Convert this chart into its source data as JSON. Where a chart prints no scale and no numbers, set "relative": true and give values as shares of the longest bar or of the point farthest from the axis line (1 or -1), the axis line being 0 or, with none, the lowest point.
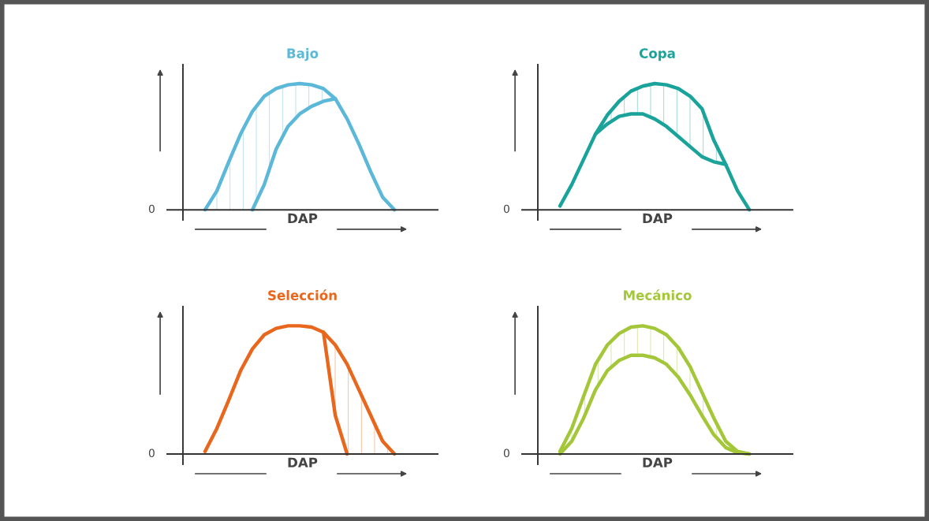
{
  "chart_data": [
    {
      "type": "line",
      "title": "Bajo",
      "xlabel": "DAP",
      "relative": true,
      "annotations": [
        "0"
      ],
      "categories": [
        null,
        null,
        null,
        null,
        null,
        null,
        null,
        null,
        null,
        null,
        null,
        null,
        null,
        null,
        null,
        null,
        null,
        null,
        null,
        null,
        null
      ],
      "series": [
        {
          "color": "#5bb8d8",
          "values": [
            null,
            0.0,
            0.15,
            0.38,
            0.6,
            0.78,
            0.9,
            0.96,
            0.99,
            1.0,
            0.99,
            0.96,
            0.88,
            0.72,
            0.52,
            0.3,
            0.1,
            0.0,
            null,
            null,
            null
          ],
          "lower": [
            null,
            0.0,
            0.0,
            0.0,
            0.0,
            0.0,
            0.2,
            0.48,
            0.66,
            0.76,
            0.82,
            0.86,
            0.88,
            null,
            null,
            null,
            null,
            null,
            null,
            null,
            null
          ],
          "upper": [
            null,
            0.0,
            0.15,
            0.38,
            0.6,
            0.78,
            0.9,
            0.96,
            0.99,
            1.0,
            0.99,
            0.96,
            0.88,
            null,
            null,
            null,
            null,
            null,
            null,
            null,
            null
          ]
        },
        {
          "color": "#5bb8d8",
          "values": [
            null,
            null,
            null,
            null,
            null,
            0.0,
            0.2,
            0.48,
            0.66,
            0.76,
            0.82,
            0.86,
            0.88,
            null,
            null,
            null,
            null,
            null,
            null,
            null,
            null
          ]
        }
      ]
    },
    {
      "type": "line",
      "title": "Copa",
      "xlabel": "DAP",
      "relative": true,
      "annotations": [
        "0"
      ],
      "categories": [
        null,
        null,
        null,
        null,
        null,
        null,
        null,
        null,
        null,
        null,
        null,
        null,
        null,
        null,
        null,
        null,
        null,
        null,
        null,
        null,
        null
      ],
      "series": [
        {
          "color": "#1aa39a",
          "values": [
            null,
            0.03,
            0.2,
            0.4,
            0.6,
            0.75,
            0.86,
            0.94,
            0.98,
            1.0,
            0.99,
            0.96,
            0.9,
            0.8,
            0.55,
            0.36,
            0.15,
            0.0,
            null,
            null,
            null
          ],
          "lower": [
            null,
            null,
            null,
            null,
            0.6,
            0.68,
            0.74,
            0.76,
            0.76,
            0.72,
            0.66,
            0.58,
            0.5,
            0.42,
            0.38,
            0.36,
            null,
            null,
            null,
            null,
            null
          ],
          "upper": [
            null,
            null,
            null,
            null,
            0.6,
            0.75,
            0.86,
            0.94,
            0.98,
            1.0,
            0.99,
            0.96,
            0.9,
            0.8,
            0.55,
            0.36,
            null,
            null,
            null,
            null,
            null
          ]
        },
        {
          "color": "#1aa39a",
          "values": [
            null,
            null,
            null,
            null,
            0.6,
            0.68,
            0.74,
            0.76,
            0.76,
            0.72,
            0.66,
            0.58,
            0.5,
            0.42,
            0.38,
            0.36,
            null,
            null,
            null,
            null,
            null
          ]
        }
      ]
    },
    {
      "type": "line",
      "title": "Selección",
      "xlabel": "DAP",
      "relative": true,
      "annotations": [
        "0"
      ],
      "categories": [
        null,
        null,
        null,
        null,
        null,
        null,
        null,
        null,
        null,
        null,
        null,
        null,
        null,
        null,
        null,
        null,
        null,
        null,
        null,
        null,
        null
      ],
      "series": [
        {
          "color": "#e8671c",
          "values": [
            null,
            0.02,
            0.2,
            0.42,
            0.65,
            0.82,
            0.93,
            0.98,
            1.0,
            1.0,
            0.99,
            0.95,
            0.85,
            0.7,
            0.5,
            0.3,
            0.1,
            0.0,
            null,
            null,
            null
          ],
          "lower": [
            null,
            null,
            null,
            null,
            null,
            null,
            null,
            null,
            null,
            null,
            null,
            0.95,
            0.3,
            0.0,
            0.0,
            0.0,
            0.0,
            0.0,
            null,
            null,
            null
          ],
          "upper": [
            null,
            null,
            null,
            null,
            null,
            null,
            null,
            null,
            null,
            null,
            null,
            0.95,
            0.85,
            0.7,
            0.5,
            0.3,
            0.1,
            0.0,
            null,
            null,
            null
          ]
        },
        {
          "color": "#e8671c",
          "values": [
            null,
            null,
            null,
            null,
            null,
            null,
            null,
            null,
            null,
            null,
            null,
            0.95,
            0.3,
            0.0,
            null,
            null,
            null,
            null,
            null,
            null,
            null
          ]
        }
      ]
    },
    {
      "type": "line",
      "title": "Mecánico",
      "xlabel": "DAP",
      "relative": true,
      "annotations": [
        "0"
      ],
      "categories": [
        null,
        null,
        null,
        null,
        null,
        null,
        null,
        null,
        null,
        null,
        null,
        null,
        null,
        null,
        null,
        null,
        null,
        null,
        null,
        null,
        null
      ],
      "series": [
        {
          "color": "#a4c73a",
          "values": [
            null,
            0.02,
            0.2,
            0.45,
            0.7,
            0.85,
            0.94,
            0.99,
            1.0,
            0.98,
            0.93,
            0.83,
            0.68,
            0.48,
            0.28,
            0.1,
            0.02,
            0.0,
            null,
            null,
            null
          ],
          "lower": [
            null,
            0.0,
            0.1,
            0.28,
            0.5,
            0.65,
            0.73,
            0.77,
            0.77,
            0.75,
            0.7,
            0.6,
            0.46,
            0.3,
            0.15,
            0.05,
            0.01,
            0.0,
            null,
            null,
            null
          ],
          "upper": [
            null,
            0.02,
            0.2,
            0.45,
            0.7,
            0.85,
            0.94,
            0.99,
            1.0,
            0.98,
            0.93,
            0.83,
            0.68,
            0.48,
            0.28,
            0.1,
            0.02,
            0.0,
            null,
            null,
            null
          ]
        },
        {
          "color": "#a4c73a",
          "values": [
            null,
            0.0,
            0.1,
            0.28,
            0.5,
            0.65,
            0.73,
            0.77,
            0.77,
            0.75,
            0.7,
            0.6,
            0.46,
            0.3,
            0.15,
            0.05,
            0.01,
            0.0,
            null,
            null,
            null
          ]
        }
      ]
    }
  ]
}
